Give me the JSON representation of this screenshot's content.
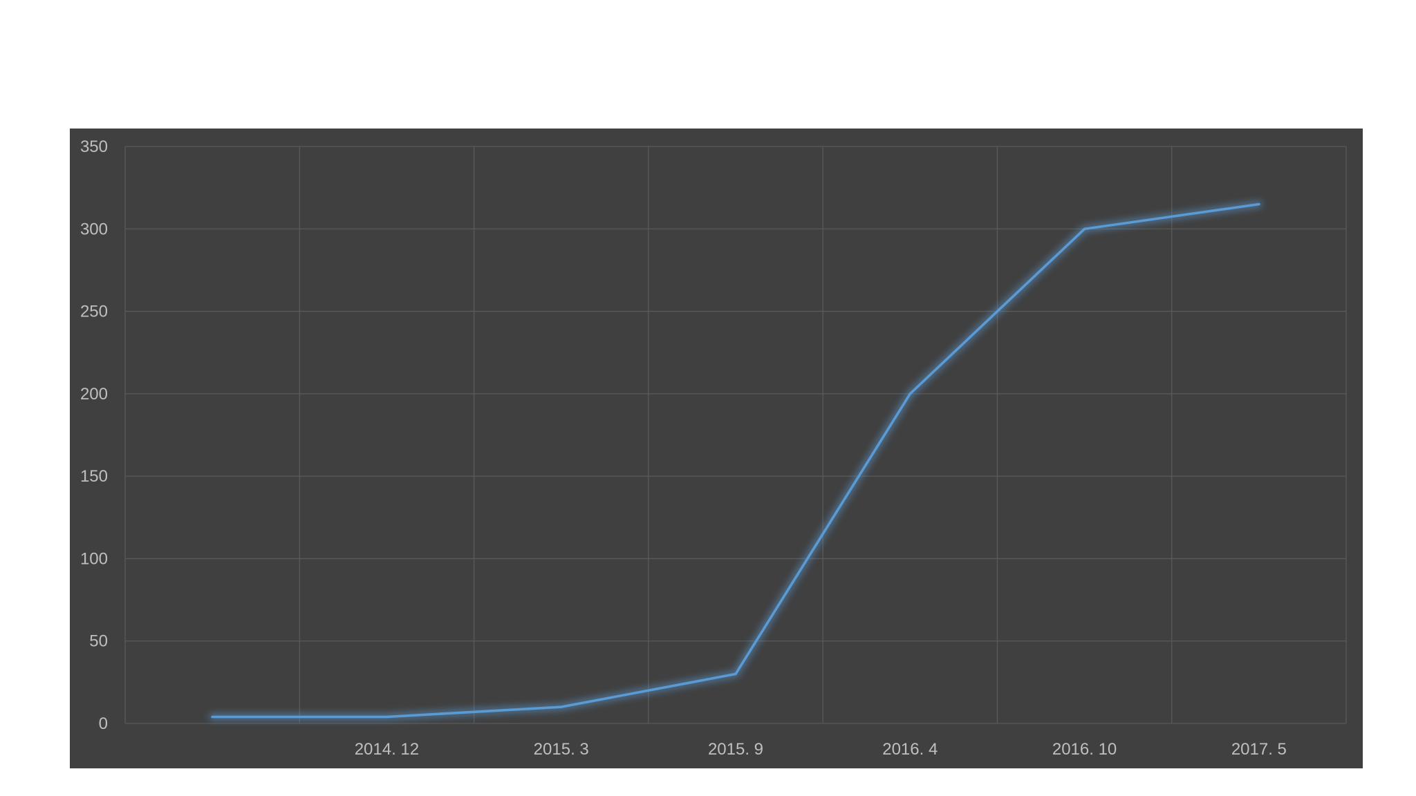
{
  "chart_data": {
    "type": "line",
    "title": "",
    "xlabel": "",
    "ylabel": "",
    "categories": [
      "",
      "2014. 12",
      "2015. 3",
      "2015. 9",
      "2016. 4",
      "2016. 10",
      "2017. 5"
    ],
    "series": [
      {
        "values": [
          4,
          4,
          10,
          30,
          200,
          300,
          315
        ]
      }
    ],
    "ylim": [
      0,
      350
    ],
    "yticks": [
      0,
      50,
      100,
      150,
      200,
      250,
      300,
      350
    ],
    "grid": true,
    "legend": "none",
    "colors": {
      "background": "#404040",
      "line": "#5b9bd5",
      "glow": "#5b9bd5",
      "grid": "#5a5a5a",
      "text": "#bfbfbf"
    }
  }
}
